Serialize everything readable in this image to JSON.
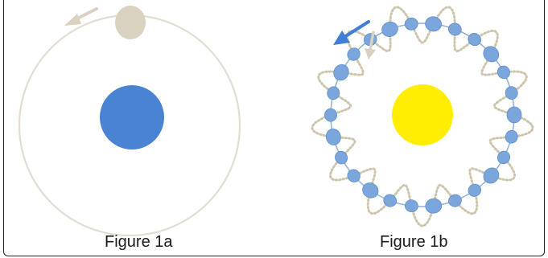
{
  "figures": [
    {
      "caption": "Figure 1a",
      "central_body_color": "#4a82d4",
      "orbiting_body_color": "#d9d2c0",
      "orbit_color": "#e2ddd0",
      "arrow_color": "#d9d2c0"
    },
    {
      "caption": "Figure 1b",
      "central_body_color": "#ffee00",
      "orbiting_body_color": "#7aa6dc",
      "orbit_color": "#8fb0dc",
      "wave_path_color": "#cfc5ad",
      "arrow_primary_color": "#3f7fd8",
      "arrow_secondary_color": "#d9d2c0"
    }
  ]
}
